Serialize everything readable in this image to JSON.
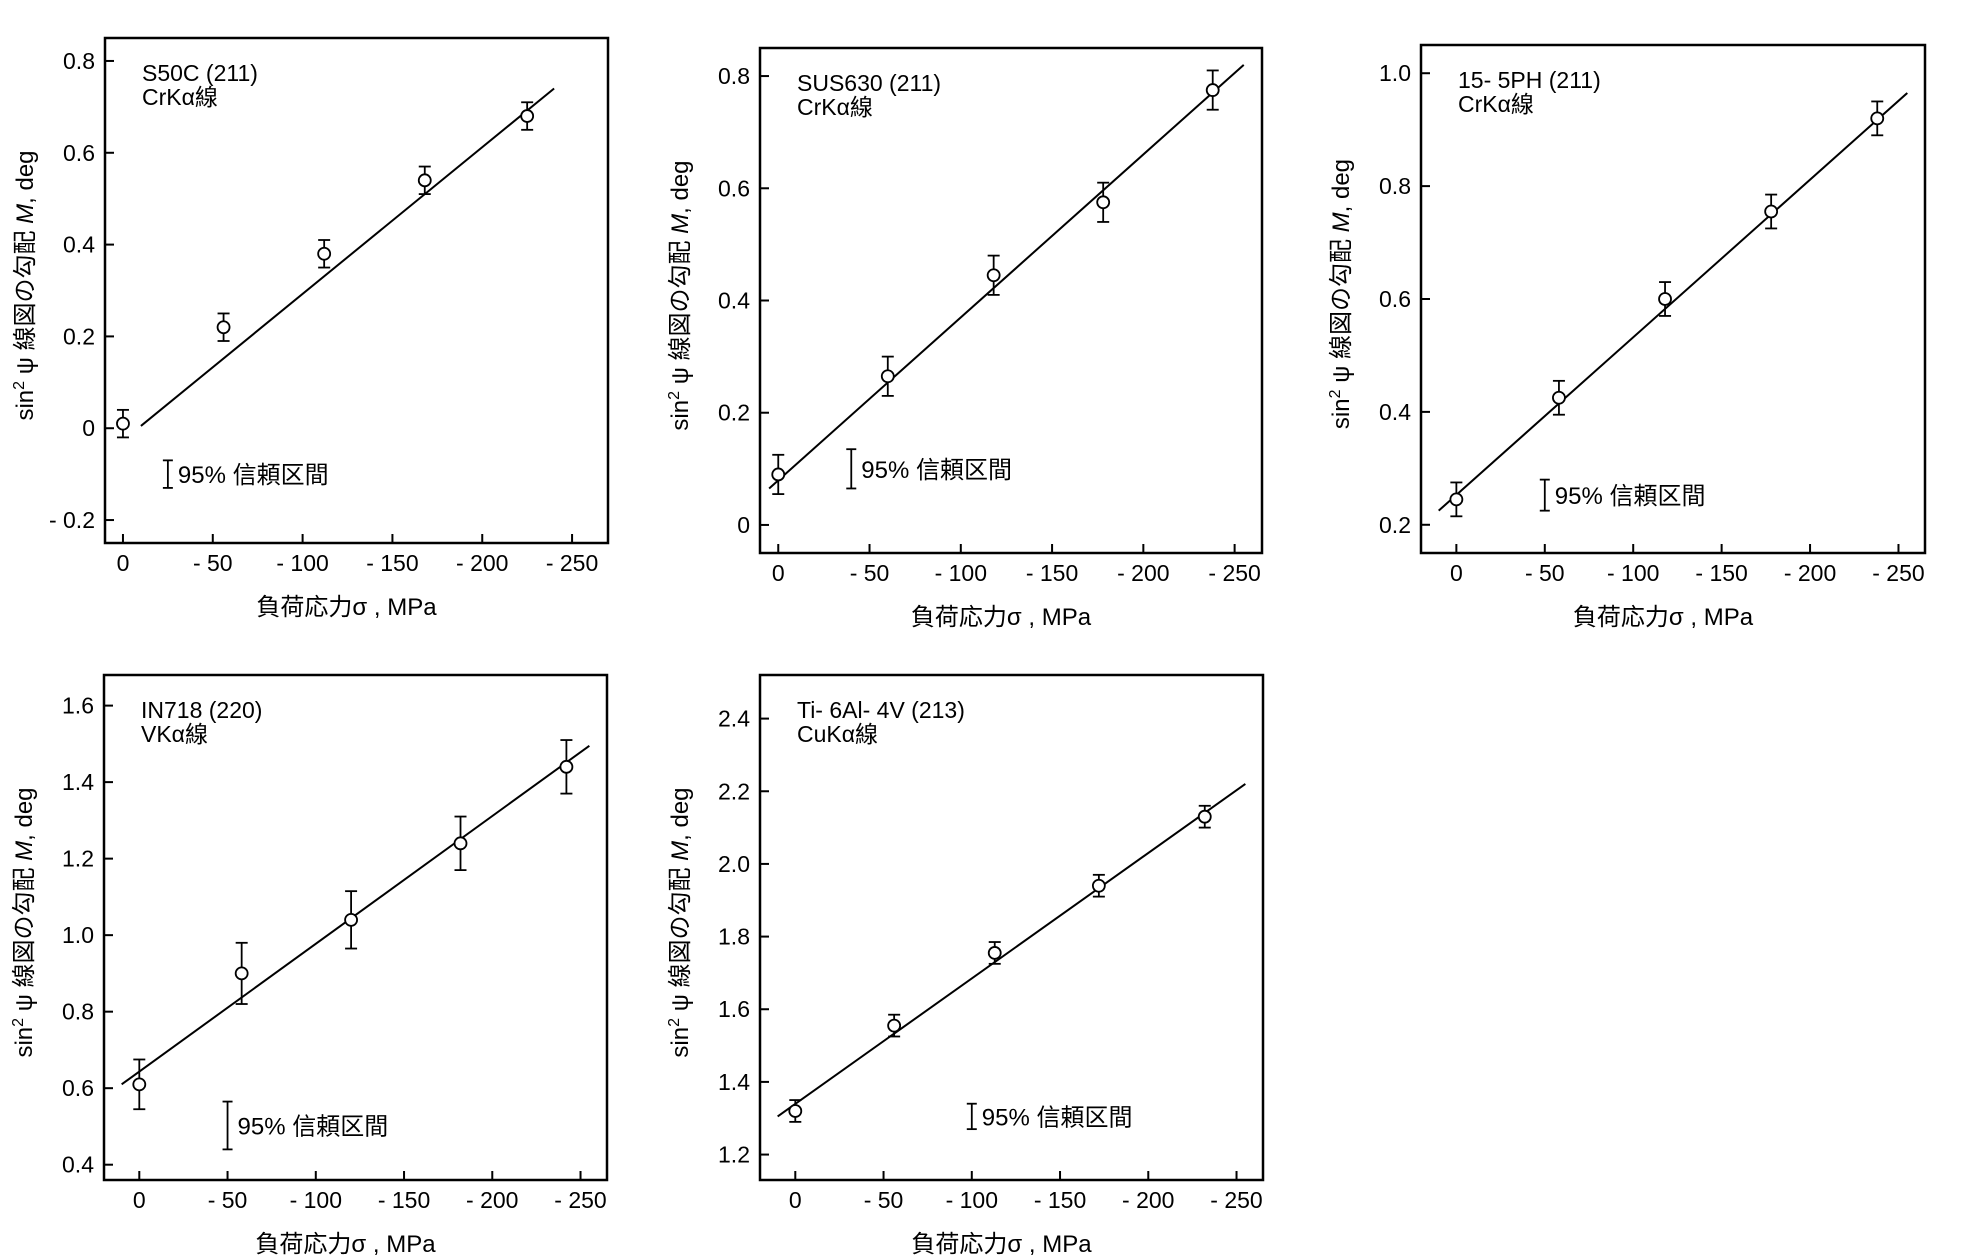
{
  "chart_data": [
    {
      "type": "scatter",
      "material": "S50C (211)",
      "radiation": "CrKα線",
      "xlabel": "負荷応力σ , MPa",
      "ylabel_main": "sin",
      "ylabel_sup": "2",
      "ylabel_tail": " ψ 線図の勾配 ",
      "ylabel_var": "M",
      "ylabel_unit": ", deg",
      "xlim": [
        10,
        -270
      ],
      "ylim": [
        -0.25,
        0.85
      ],
      "x_ticks": [
        0,
        -50,
        -100,
        -150,
        -200,
        -250
      ],
      "x_tick_labels": [
        "0",
        "- 50",
        "- 100",
        "- 150",
        "- 200",
        "- 250"
      ],
      "y_ticks": [
        -0.2,
        0,
        0.2,
        0.4,
        0.6,
        0.8
      ],
      "y_tick_labels": [
        "- 0.2",
        "0",
        "0.2",
        "0.4",
        "0.6",
        "0.8"
      ],
      "points": [
        {
          "x": 0,
          "y": 0.01,
          "err": 0.03
        },
        {
          "x": -56,
          "y": 0.22,
          "err": 0.03
        },
        {
          "x": -112,
          "y": 0.38,
          "err": 0.03
        },
        {
          "x": -168,
          "y": 0.54,
          "err": 0.03
        },
        {
          "x": -225,
          "y": 0.68,
          "err": 0.03
        }
      ],
      "fit": {
        "x": [
          -10,
          -240
        ],
        "y": [
          0.005,
          0.74
        ]
      },
      "ci_label": "95% 信頼区間",
      "ci_bar": {
        "x": -25,
        "y": [
          -0.13,
          -0.07
        ]
      }
    },
    {
      "type": "scatter",
      "material": "SUS630 (211)",
      "radiation": "CrKα線",
      "xlabel": "負荷応力σ , MPa",
      "ylabel_main": "sin",
      "ylabel_sup": "2",
      "ylabel_tail": " ψ 線図の勾配 ",
      "ylabel_var": "M",
      "ylabel_unit": ", deg",
      "xlim": [
        10,
        -265
      ],
      "ylim": [
        -0.05,
        0.85
      ],
      "x_ticks": [
        0,
        -50,
        -100,
        -150,
        -200,
        -250
      ],
      "x_tick_labels": [
        "0",
        "- 50",
        "- 100",
        "- 150",
        "- 200",
        "- 250"
      ],
      "y_ticks": [
        0,
        0.2,
        0.4,
        0.6,
        0.8
      ],
      "y_tick_labels": [
        "0",
        "0.2",
        "0.4",
        "0.6",
        "0.8"
      ],
      "points": [
        {
          "x": 0,
          "y": 0.09,
          "err": 0.035
        },
        {
          "x": -60,
          "y": 0.265,
          "err": 0.035
        },
        {
          "x": -118,
          "y": 0.445,
          "err": 0.035
        },
        {
          "x": -178,
          "y": 0.575,
          "err": 0.035
        },
        {
          "x": -238,
          "y": 0.775,
          "err": 0.035
        }
      ],
      "fit": {
        "x": [
          5,
          -255
        ],
        "y": [
          0.065,
          0.82
        ]
      },
      "ci_label": "95% 信頼区間",
      "ci_bar": {
        "x": -40,
        "y": [
          0.065,
          0.135
        ]
      }
    },
    {
      "type": "scatter",
      "material": "15- 5PH (211)",
      "radiation": "CrKα線",
      "xlabel": "負荷応力σ , MPa",
      "ylabel_main": "sin",
      "ylabel_sup": "2",
      "ylabel_tail": " ψ 線図の勾配 ",
      "ylabel_var": "M",
      "ylabel_unit": ", deg",
      "xlim": [
        20,
        -265
      ],
      "ylim": [
        0.15,
        1.05
      ],
      "x_ticks": [
        0,
        -50,
        -100,
        -150,
        -200,
        -250
      ],
      "x_tick_labels": [
        "0",
        "- 50",
        "- 100",
        "- 150",
        "- 200",
        "- 250"
      ],
      "y_ticks": [
        0.2,
        0.4,
        0.6,
        0.8,
        1.0
      ],
      "y_tick_labels": [
        "0.2",
        "0.4",
        "0.6",
        "0.8",
        "1.0"
      ],
      "points": [
        {
          "x": 0,
          "y": 0.245,
          "err": 0.03
        },
        {
          "x": -58,
          "y": 0.425,
          "err": 0.03
        },
        {
          "x": -118,
          "y": 0.6,
          "err": 0.03
        },
        {
          "x": -178,
          "y": 0.755,
          "err": 0.03
        },
        {
          "x": -238,
          "y": 0.92,
          "err": 0.03
        }
      ],
      "fit": {
        "x": [
          10,
          -255
        ],
        "y": [
          0.225,
          0.965
        ]
      },
      "ci_label": "95% 信頼区間",
      "ci_bar": {
        "x": -50,
        "y": [
          0.225,
          0.28
        ]
      }
    },
    {
      "type": "scatter",
      "material": "IN718 (220)",
      "radiation": "VKα線",
      "xlabel": "負荷応力σ , MPa",
      "ylabel_main": "sin",
      "ylabel_sup": "2",
      "ylabel_tail": " ψ 線図の勾配 ",
      "ylabel_var": "M",
      "ylabel_unit": ", deg",
      "xlim": [
        20,
        -265
      ],
      "ylim": [
        0.36,
        1.68
      ],
      "x_ticks": [
        0,
        -50,
        -100,
        -150,
        -200,
        -250
      ],
      "x_tick_labels": [
        "0",
        "- 50",
        "- 100",
        "- 150",
        "- 200",
        "- 250"
      ],
      "y_ticks": [
        0.4,
        0.6,
        0.8,
        1.0,
        1.2,
        1.4,
        1.6
      ],
      "y_tick_labels": [
        "0.4",
        "0.6",
        "0.8",
        "1.0",
        "1.2",
        "1.4",
        "1.6"
      ],
      "points": [
        {
          "x": 0,
          "y": 0.61,
          "err": 0.065
        },
        {
          "x": -58,
          "y": 0.9,
          "err": 0.08
        },
        {
          "x": -120,
          "y": 1.04,
          "err": 0.075
        },
        {
          "x": -182,
          "y": 1.24,
          "err": 0.07
        },
        {
          "x": -242,
          "y": 1.44,
          "err": 0.07
        }
      ],
      "fit": {
        "x": [
          10,
          -255
        ],
        "y": [
          0.61,
          1.495
        ]
      },
      "ci_label": "95% 信頼区間",
      "ci_bar": {
        "x": -50,
        "y": [
          0.44,
          0.565
        ]
      }
    },
    {
      "type": "scatter",
      "material": "Ti- 6Al- 4V (213)",
      "radiation": "CuKα線",
      "xlabel": "負荷応力σ , MPa",
      "ylabel_main": "sin",
      "ylabel_sup": "2",
      "ylabel_tail": " ψ 線図の勾配 ",
      "ylabel_var": "M",
      "ylabel_unit": ", deg",
      "xlim": [
        20,
        -265
      ],
      "ylim": [
        1.13,
        2.52
      ],
      "x_ticks": [
        0,
        -50,
        -100,
        -150,
        -200,
        -250
      ],
      "x_tick_labels": [
        "0",
        "- 50",
        "- 100",
        "- 150",
        "- 200",
        "- 250"
      ],
      "y_ticks": [
        1.2,
        1.4,
        1.6,
        1.8,
        2.0,
        2.2,
        2.4
      ],
      "y_tick_labels": [
        "1.2",
        "1.4",
        "1.6",
        "1.8",
        "2.0",
        "2.2",
        "2.4"
      ],
      "points": [
        {
          "x": 0,
          "y": 1.32,
          "err": 0.03
        },
        {
          "x": -56,
          "y": 1.555,
          "err": 0.03
        },
        {
          "x": -113,
          "y": 1.755,
          "err": 0.03
        },
        {
          "x": -172,
          "y": 1.94,
          "err": 0.03
        },
        {
          "x": -232,
          "y": 2.13,
          "err": 0.03
        }
      ],
      "fit": {
        "x": [
          10,
          -255
        ],
        "y": [
          1.305,
          2.22
        ]
      },
      "ci_label": "95% 信頼区間",
      "ci_bar": {
        "x": -100,
        "y": [
          1.27,
          1.34
        ]
      }
    }
  ]
}
